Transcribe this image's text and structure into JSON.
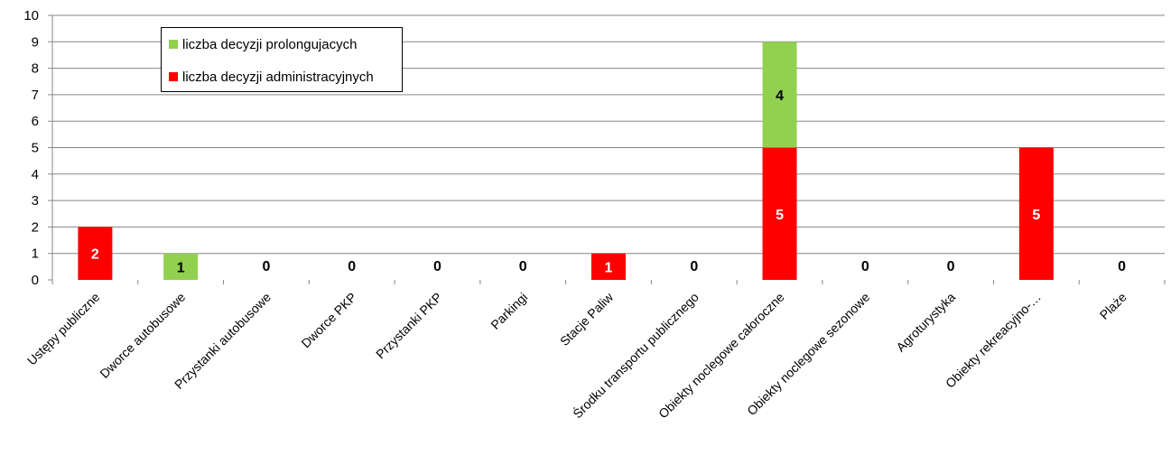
{
  "chart_data": {
    "type": "bar",
    "stacked": true,
    "categories": [
      "Ustępy publiczne",
      "Dworce autobusowe",
      "Przystanki autobusowe",
      "Dworce PKP",
      "Przystanki PKP",
      "Parkingi",
      "Stacje Paliw",
      "Środku transportu publicznego",
      "Obiekty noclegowe całoroczne",
      "Obiekty noclegowe sezonowe",
      "Agroturystyka",
      "Obiekty rekreacyjno-…",
      "Plaże"
    ],
    "series": [
      {
        "name": "liczba decyzji administracyjnych",
        "color": "#ff0000",
        "values": [
          2,
          0,
          0,
          0,
          0,
          0,
          1,
          0,
          5,
          0,
          0,
          5,
          0
        ]
      },
      {
        "name": "liczba decyzji prolongujacych",
        "color": "#92d050",
        "values": [
          0,
          1,
          0,
          0,
          0,
          0,
          0,
          0,
          4,
          0,
          0,
          0,
          0
        ]
      }
    ],
    "data_labels": [
      "2",
      "1",
      "0",
      "0",
      "0",
      "0",
      "1",
      "0",
      "5",
      "0",
      "0",
      "5",
      "0",
      "4"
    ],
    "ylim": [
      0,
      10
    ],
    "yticks": [
      0,
      1,
      2,
      3,
      4,
      5,
      6,
      7,
      8,
      9,
      10
    ],
    "grid": true,
    "legend_position": "top-left",
    "title": "",
    "xlabel": "",
    "ylabel": ""
  },
  "legend": {
    "items": [
      {
        "label": "liczba decyzji prolongujacych",
        "color": "#92d050"
      },
      {
        "label": "liczba decyzji administracyjnych",
        "color": "#ff0000"
      }
    ]
  }
}
